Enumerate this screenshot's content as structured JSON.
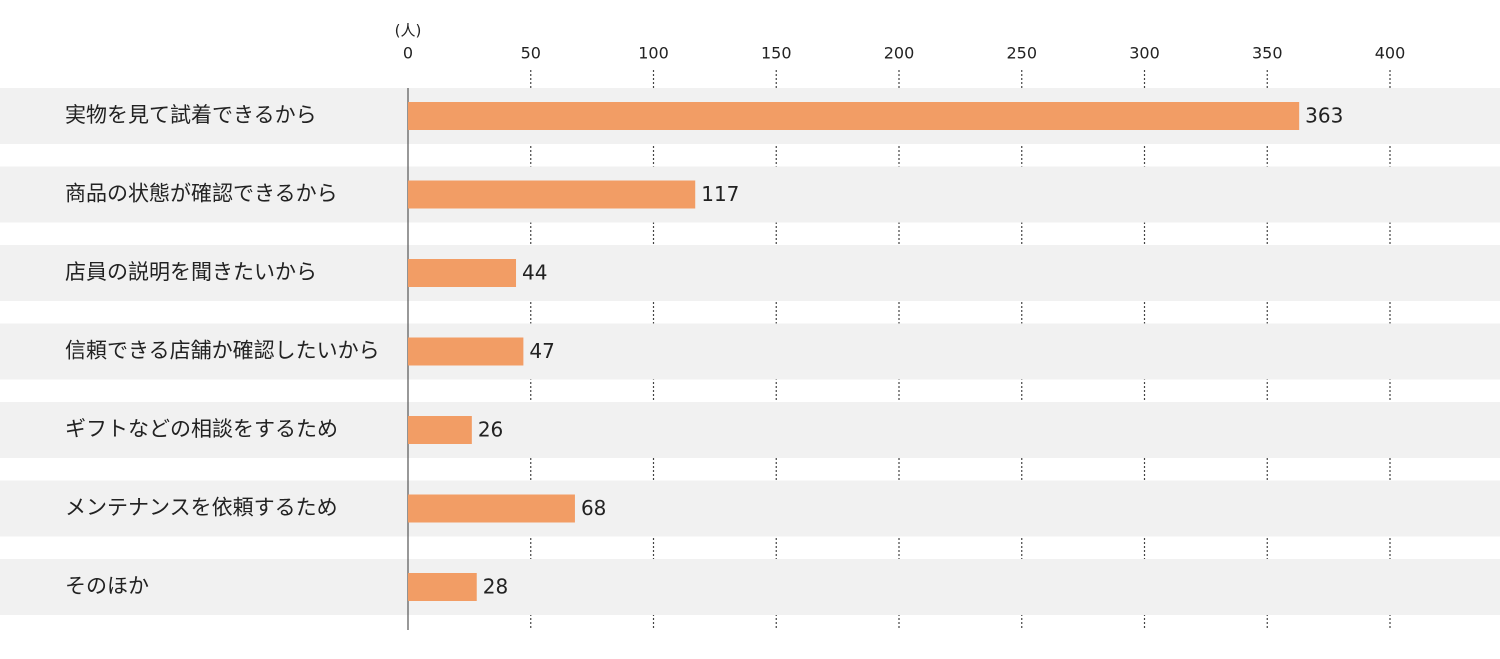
{
  "chart_data": {
    "type": "bar",
    "orientation": "horizontal",
    "unit_label": "(人)",
    "categories": [
      "実物を見て試着できるから",
      "商品の状態が確認できるから",
      "店員の説明を聞きたいから",
      "信頼できる店舗か確認したいから",
      "ギフトなどの相談をするため",
      "メンテナンスを依頼するため",
      "そのほか"
    ],
    "values": [
      363,
      117,
      44,
      47,
      26,
      68,
      28
    ],
    "color": "#f29d65",
    "xlim": [
      0,
      400
    ],
    "xticks": [
      0,
      50,
      100,
      150,
      200,
      250,
      300,
      350,
      400
    ],
    "grid": true
  }
}
